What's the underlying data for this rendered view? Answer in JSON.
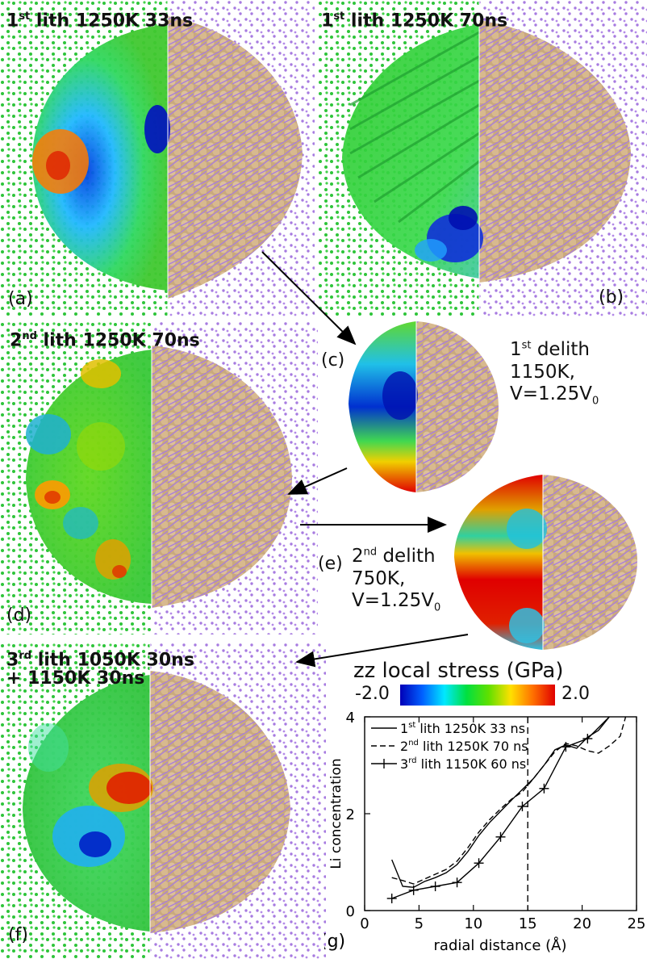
{
  "panels": {
    "a": {
      "title_pre": "1",
      "title_sup": "st",
      "title_post": " lith 1250K 33ns",
      "label": "(a)"
    },
    "b": {
      "title_pre": "1",
      "title_sup": "st",
      "title_post": " lith 1250K 70ns",
      "label": "(b)"
    },
    "c": {
      "label": "(c)",
      "anno_line1_pre": "1",
      "anno_line1_sup": "st",
      "anno_line1_post": " delith",
      "anno_line2": "1150K,",
      "anno_line3_pre": "V=1.25V",
      "anno_line3_sub": "0"
    },
    "d": {
      "title_pre": "2",
      "title_sup": "nd",
      "title_post": " lith 1250K 70ns",
      "label": "(d)"
    },
    "e": {
      "label": "(e)",
      "anno_line1_pre": "2",
      "anno_line1_sup": "nd",
      "anno_line1_post": " delith",
      "anno_line2": "750K,",
      "anno_line3_pre": "V=1.25V",
      "anno_line3_sub": "0"
    },
    "f": {
      "title_pre": "3",
      "title_sup": "rd",
      "title_post": " lith 1050K 30ns",
      "title_line2": "+ 1150K 30ns",
      "label": "(f)"
    }
  },
  "colorbar": {
    "title": "zz local stress (GPa)",
    "min_label": "-2.0",
    "max_label": "2.0"
  },
  "chart_data": {
    "type": "line",
    "panel_label": "(g)",
    "xlabel": "radial distance (Å)",
    "ylabel": "Li concentration",
    "xlim": [
      0,
      25
    ],
    "ylim": [
      0,
      4
    ],
    "xticks": [
      0,
      5,
      10,
      15,
      20,
      25
    ],
    "yticks": [
      0,
      2,
      4
    ],
    "vline_x": 15,
    "series": [
      {
        "name_pre": "1",
        "name_sup": "st",
        "name_post": " lith 1250K 33 ns",
        "style": "solid",
        "x": [
          2.5,
          3.5,
          4.5,
          5.5,
          6.5,
          7.5,
          8.5,
          9.5,
          10.5,
          11.5,
          12.5,
          13.5,
          14.5,
          15.5,
          16.5,
          17.5,
          18.5,
          19.5,
          20.5,
          21.5,
          22.5
        ],
        "y": [
          1.05,
          0.5,
          0.48,
          0.6,
          0.68,
          0.78,
          0.95,
          1.22,
          1.55,
          1.82,
          2.05,
          2.28,
          2.5,
          2.72,
          3.0,
          3.32,
          3.42,
          3.35,
          3.58,
          3.72,
          4.0
        ]
      },
      {
        "name_pre": "2",
        "name_sup": "nd",
        "name_post": " lith 1250K 70 ns",
        "style": "dashed",
        "x": [
          2.5,
          3.5,
          4.5,
          5.5,
          6.5,
          7.5,
          8.5,
          9.5,
          10.5,
          11.5,
          12.5,
          13.5,
          14.5,
          15.5,
          16.5,
          17.5,
          18.5,
          19.5,
          20.5,
          21.5,
          22.5,
          23.5,
          24.0
        ],
        "y": [
          0.68,
          0.62,
          0.55,
          0.65,
          0.75,
          0.85,
          1.02,
          1.3,
          1.62,
          1.88,
          2.1,
          2.3,
          2.45,
          2.72,
          3.0,
          3.28,
          3.45,
          3.4,
          3.3,
          3.25,
          3.4,
          3.6,
          4.0
        ]
      },
      {
        "name_pre": "3",
        "name_sup": "rd",
        "name_post": " lith 1150K 60 ns",
        "style": "plus",
        "x": [
          2.5,
          4.5,
          6.5,
          8.5,
          10.5,
          12.5,
          14.5,
          16.5,
          18.5,
          20.5,
          22.5
        ],
        "y": [
          0.25,
          0.42,
          0.5,
          0.58,
          0.98,
          1.52,
          2.15,
          2.52,
          3.38,
          3.55,
          4.0
        ]
      }
    ]
  }
}
